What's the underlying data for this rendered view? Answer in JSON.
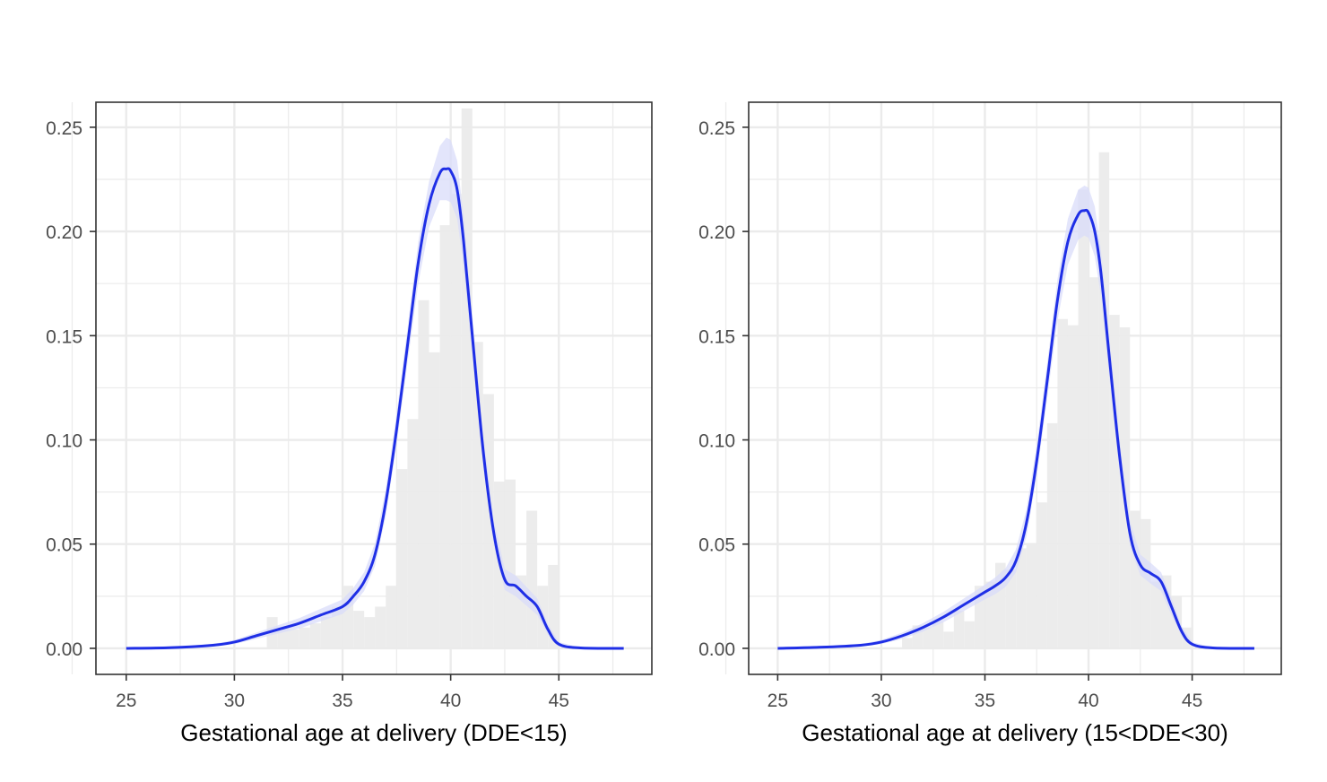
{
  "chart_data": [
    {
      "type": "histogram",
      "xlabel": "Gestational age at delivery (DDE<15)",
      "ylabel": "",
      "xlim": [
        23.6,
        49.3
      ],
      "ylim": [
        -0.0125,
        0.262
      ],
      "x_ticks": [
        25,
        30,
        35,
        40,
        45
      ],
      "x_tick_labels": [
        "25",
        "30",
        "35",
        "40",
        "45"
      ],
      "y_ticks": [
        0,
        0.05,
        0.1,
        0.15,
        0.2,
        0.25
      ],
      "y_tick_labels": [
        "0.00",
        "0.05",
        "0.10",
        "0.15",
        "0.20",
        "0.25"
      ],
      "grid": true,
      "legend": "none",
      "histogram": {
        "bin_width": 0.5,
        "bins": [
          {
            "x": 31.5,
            "y": 0.015
          },
          {
            "x": 32.0,
            "y": 0.01
          },
          {
            "x": 32.5,
            "y": 0.009
          },
          {
            "x": 33.0,
            "y": 0.01
          },
          {
            "x": 33.5,
            "y": 0.012
          },
          {
            "x": 34.0,
            "y": 0.015
          },
          {
            "x": 34.5,
            "y": 0.02
          },
          {
            "x": 35.0,
            "y": 0.03
          },
          {
            "x": 35.5,
            "y": 0.018
          },
          {
            "x": 36.0,
            "y": 0.015
          },
          {
            "x": 36.5,
            "y": 0.02
          },
          {
            "x": 37.0,
            "y": 0.03
          },
          {
            "x": 37.5,
            "y": 0.086
          },
          {
            "x": 38.0,
            "y": 0.11
          },
          {
            "x": 38.5,
            "y": 0.167
          },
          {
            "x": 39.0,
            "y": 0.142
          },
          {
            "x": 39.5,
            "y": 0.203
          },
          {
            "x": 40.0,
            "y": 0.218
          },
          {
            "x": 40.5,
            "y": 0.259
          },
          {
            "x": 41.0,
            "y": 0.147
          },
          {
            "x": 41.5,
            "y": 0.122
          },
          {
            "x": 42.0,
            "y": 0.08
          },
          {
            "x": 42.5,
            "y": 0.081
          },
          {
            "x": 43.0,
            "y": 0.035
          },
          {
            "x": 43.5,
            "y": 0.066
          },
          {
            "x": 44.0,
            "y": 0.03
          },
          {
            "x": 44.5,
            "y": 0.04
          }
        ]
      },
      "density": {
        "x": [
          25,
          27,
          29,
          30,
          31,
          32,
          33,
          34,
          35,
          35.5,
          36,
          36.5,
          37,
          37.5,
          38,
          38.5,
          39,
          39.5,
          39.8,
          40,
          40.3,
          40.6,
          41,
          41.5,
          42,
          42.5,
          43,
          43.5,
          44,
          44.5,
          45,
          46,
          48
        ],
        "y": [
          0.0,
          0.0003,
          0.0015,
          0.003,
          0.006,
          0.009,
          0.012,
          0.016,
          0.02,
          0.025,
          0.032,
          0.045,
          0.07,
          0.105,
          0.145,
          0.185,
          0.213,
          0.228,
          0.23,
          0.229,
          0.22,
          0.195,
          0.15,
          0.095,
          0.055,
          0.033,
          0.03,
          0.025,
          0.02,
          0.009,
          0.002,
          0.0002,
          0.0
        ],
        "ci_halfwidth": [
          0.0,
          0.0002,
          0.0006,
          0.001,
          0.0015,
          0.002,
          0.0025,
          0.003,
          0.0035,
          0.004,
          0.0045,
          0.0055,
          0.0065,
          0.0075,
          0.0085,
          0.01,
          0.011,
          0.013,
          0.015,
          0.015,
          0.014,
          0.012,
          0.01,
          0.008,
          0.006,
          0.005,
          0.005,
          0.0045,
          0.004,
          0.0025,
          0.001,
          0.0002,
          0.0
        ]
      },
      "colors": {
        "density_line": "#1f2fe6",
        "ci_band": "#d9dcfa",
        "histogram": "#ebebeb",
        "grid": "#ebebeb",
        "panel_border": "#333333"
      }
    },
    {
      "type": "histogram",
      "xlabel": "Gestational age at delivery (15<DDE<30)",
      "ylabel": "",
      "xlim": [
        23.6,
        49.3
      ],
      "ylim": [
        -0.0125,
        0.262
      ],
      "x_ticks": [
        25,
        30,
        35,
        40,
        45
      ],
      "x_tick_labels": [
        "25",
        "30",
        "35",
        "40",
        "45"
      ],
      "y_ticks": [
        0,
        0.05,
        0.1,
        0.15,
        0.2,
        0.25
      ],
      "y_tick_labels": [
        "0.00",
        "0.05",
        "0.10",
        "0.15",
        "0.20",
        "0.25"
      ],
      "grid": true,
      "legend": "none",
      "histogram": {
        "bin_width": 0.5,
        "bins": [
          {
            "x": 31.0,
            "y": 0.005
          },
          {
            "x": 31.5,
            "y": 0.011
          },
          {
            "x": 32.0,
            "y": 0.01
          },
          {
            "x": 32.5,
            "y": 0.013
          },
          {
            "x": 33.0,
            "y": 0.008
          },
          {
            "x": 33.5,
            "y": 0.018
          },
          {
            "x": 34.0,
            "y": 0.013
          },
          {
            "x": 34.5,
            "y": 0.03
          },
          {
            "x": 35.0,
            "y": 0.032
          },
          {
            "x": 35.5,
            "y": 0.041
          },
          {
            "x": 36.0,
            "y": 0.038
          },
          {
            "x": 36.5,
            "y": 0.048
          },
          {
            "x": 37.0,
            "y": 0.05
          },
          {
            "x": 37.5,
            "y": 0.07
          },
          {
            "x": 38.0,
            "y": 0.108
          },
          {
            "x": 38.5,
            "y": 0.158
          },
          {
            "x": 39.0,
            "y": 0.155
          },
          {
            "x": 39.5,
            "y": 0.22
          },
          {
            "x": 40.0,
            "y": 0.178
          },
          {
            "x": 40.5,
            "y": 0.238
          },
          {
            "x": 41.0,
            "y": 0.16
          },
          {
            "x": 41.5,
            "y": 0.154
          },
          {
            "x": 42.0,
            "y": 0.066
          },
          {
            "x": 42.5,
            "y": 0.062
          },
          {
            "x": 43.0,
            "y": 0.032
          },
          {
            "x": 43.5,
            "y": 0.035
          },
          {
            "x": 44.0,
            "y": 0.025
          },
          {
            "x": 44.5,
            "y": 0.01
          }
        ]
      },
      "density": {
        "x": [
          25,
          27,
          29,
          30,
          31,
          32,
          33,
          34,
          35,
          35.5,
          36,
          36.5,
          37,
          37.5,
          38,
          38.5,
          39,
          39.5,
          39.8,
          40,
          40.3,
          40.6,
          41,
          41.5,
          42,
          42.5,
          43,
          43.5,
          44,
          44.5,
          45,
          46,
          48
        ],
        "y": [
          0.0,
          0.0005,
          0.0015,
          0.003,
          0.006,
          0.01,
          0.015,
          0.021,
          0.027,
          0.03,
          0.034,
          0.042,
          0.06,
          0.09,
          0.128,
          0.167,
          0.195,
          0.208,
          0.21,
          0.209,
          0.2,
          0.18,
          0.14,
          0.092,
          0.055,
          0.04,
          0.036,
          0.032,
          0.02,
          0.008,
          0.002,
          0.0002,
          0.0
        ],
        "ci_halfwidth": [
          0.0,
          0.0002,
          0.0006,
          0.001,
          0.0015,
          0.002,
          0.0025,
          0.003,
          0.0035,
          0.004,
          0.0045,
          0.0055,
          0.0065,
          0.0075,
          0.0085,
          0.01,
          0.011,
          0.012,
          0.012,
          0.012,
          0.012,
          0.011,
          0.01,
          0.008,
          0.006,
          0.005,
          0.005,
          0.0045,
          0.004,
          0.0025,
          0.001,
          0.0002,
          0.0
        ]
      },
      "colors": {
        "density_line": "#1f2fe6",
        "ci_band": "#d9dcfa",
        "histogram": "#ebebeb",
        "grid": "#ebebeb",
        "panel_border": "#333333"
      }
    }
  ]
}
